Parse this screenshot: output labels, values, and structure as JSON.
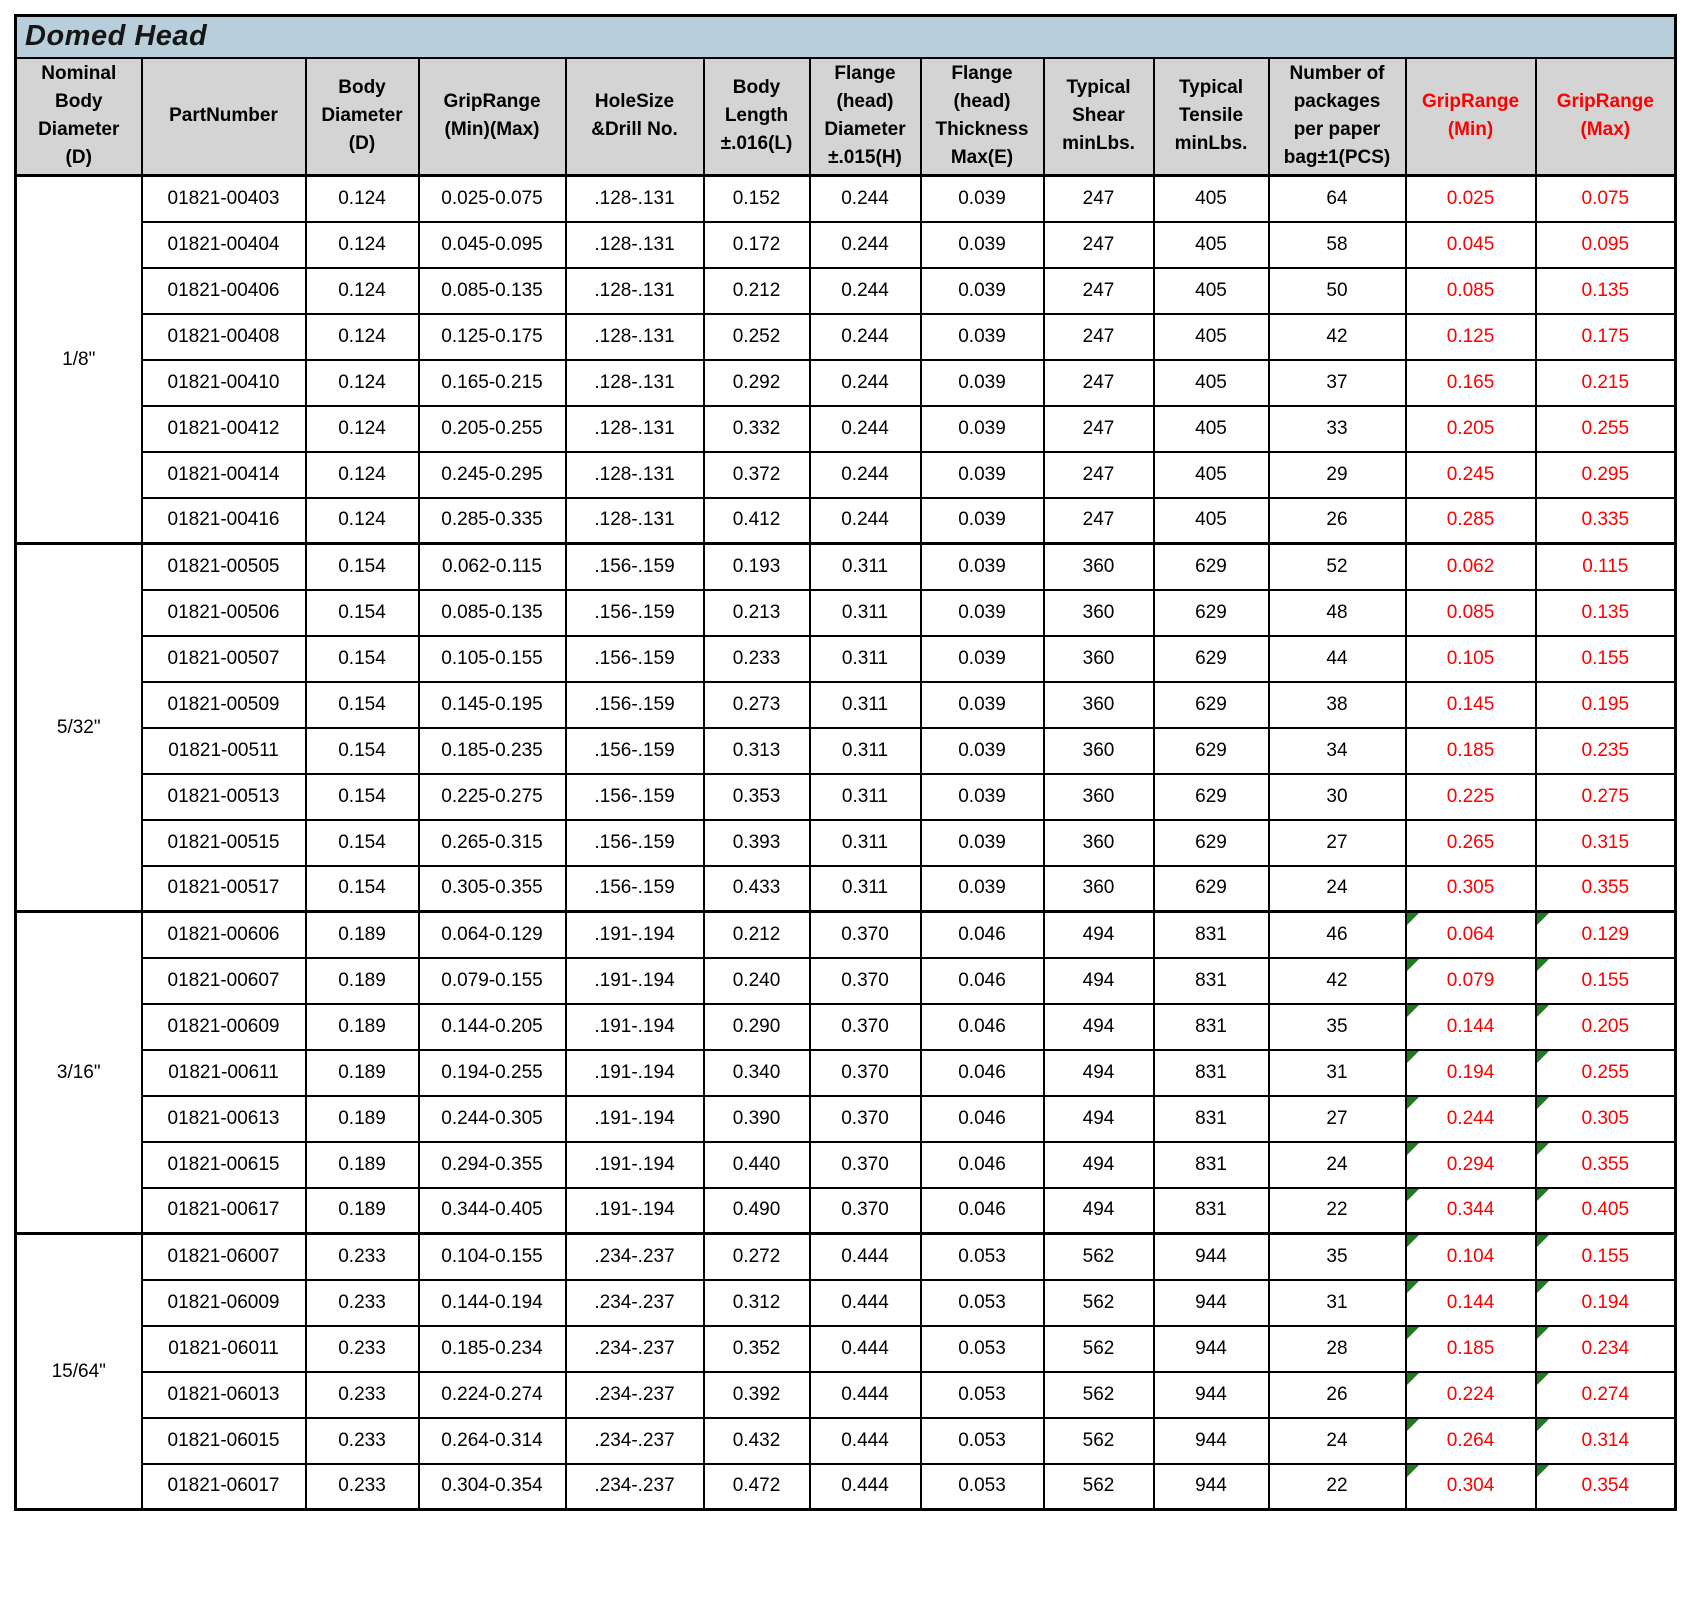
{
  "title": "Domed Head",
  "colors": {
    "title_bg": "#B8CEDA",
    "header_bg": "#D4D4D4",
    "accent_red": "#FF0000",
    "flag_green": "#1F7A1F"
  },
  "columns": [
    {
      "label": "Nominal\nBody\nDiameter\n(D)",
      "red": false
    },
    {
      "label": "PartNumber",
      "red": false
    },
    {
      "label": "Body\nDiameter\n(D)",
      "red": false
    },
    {
      "label": "GripRange\n(Min)(Max)",
      "red": false
    },
    {
      "label": "HoleSize\n&Drill No.",
      "red": false
    },
    {
      "label": "Body\nLength\n±.016(L)",
      "red": false
    },
    {
      "label": "Flange\n(head)\nDiameter\n±.015(H)",
      "red": false
    },
    {
      "label": "Flange\n(head)\nThickness\nMax(E)",
      "red": false
    },
    {
      "label": "Typical\nShear\nminLbs.",
      "red": false
    },
    {
      "label": "Typical\nTensile\nminLbs.",
      "red": false
    },
    {
      "label": "Number of\npackages\nper paper\nbag±1(PCS)",
      "red": false
    },
    {
      "label": "GripRange\n(Min)",
      "red": true
    },
    {
      "label": "GripRange\n(Max)",
      "red": true
    }
  ],
  "groups": [
    {
      "diameter": "1/8\"",
      "error_flags": false,
      "rows": [
        [
          "01821-00403",
          "0.124",
          "0.025-0.075",
          ".128-.131",
          "0.152",
          "0.244",
          "0.039",
          "247",
          "405",
          "64",
          "0.025",
          "0.075"
        ],
        [
          "01821-00404",
          "0.124",
          "0.045-0.095",
          ".128-.131",
          "0.172",
          "0.244",
          "0.039",
          "247",
          "405",
          "58",
          "0.045",
          "0.095"
        ],
        [
          "01821-00406",
          "0.124",
          "0.085-0.135",
          ".128-.131",
          "0.212",
          "0.244",
          "0.039",
          "247",
          "405",
          "50",
          "0.085",
          "0.135"
        ],
        [
          "01821-00408",
          "0.124",
          "0.125-0.175",
          ".128-.131",
          "0.252",
          "0.244",
          "0.039",
          "247",
          "405",
          "42",
          "0.125",
          "0.175"
        ],
        [
          "01821-00410",
          "0.124",
          "0.165-0.215",
          ".128-.131",
          "0.292",
          "0.244",
          "0.039",
          "247",
          "405",
          "37",
          "0.165",
          "0.215"
        ],
        [
          "01821-00412",
          "0.124",
          "0.205-0.255",
          ".128-.131",
          "0.332",
          "0.244",
          "0.039",
          "247",
          "405",
          "33",
          "0.205",
          "0.255"
        ],
        [
          "01821-00414",
          "0.124",
          "0.245-0.295",
          ".128-.131",
          "0.372",
          "0.244",
          "0.039",
          "247",
          "405",
          "29",
          "0.245",
          "0.295"
        ],
        [
          "01821-00416",
          "0.124",
          "0.285-0.335",
          ".128-.131",
          "0.412",
          "0.244",
          "0.039",
          "247",
          "405",
          "26",
          "0.285",
          "0.335"
        ]
      ]
    },
    {
      "diameter": "5/32\"",
      "error_flags": false,
      "rows": [
        [
          "01821-00505",
          "0.154",
          "0.062-0.115",
          ".156-.159",
          "0.193",
          "0.311",
          "0.039",
          "360",
          "629",
          "52",
          "0.062",
          "0.115"
        ],
        [
          "01821-00506",
          "0.154",
          "0.085-0.135",
          ".156-.159",
          "0.213",
          "0.311",
          "0.039",
          "360",
          "629",
          "48",
          "0.085",
          "0.135"
        ],
        [
          "01821-00507",
          "0.154",
          "0.105-0.155",
          ".156-.159",
          "0.233",
          "0.311",
          "0.039",
          "360",
          "629",
          "44",
          "0.105",
          "0.155"
        ],
        [
          "01821-00509",
          "0.154",
          "0.145-0.195",
          ".156-.159",
          "0.273",
          "0.311",
          "0.039",
          "360",
          "629",
          "38",
          "0.145",
          "0.195"
        ],
        [
          "01821-00511",
          "0.154",
          "0.185-0.235",
          ".156-.159",
          "0.313",
          "0.311",
          "0.039",
          "360",
          "629",
          "34",
          "0.185",
          "0.235"
        ],
        [
          "01821-00513",
          "0.154",
          "0.225-0.275",
          ".156-.159",
          "0.353",
          "0.311",
          "0.039",
          "360",
          "629",
          "30",
          "0.225",
          "0.275"
        ],
        [
          "01821-00515",
          "0.154",
          "0.265-0.315",
          ".156-.159",
          "0.393",
          "0.311",
          "0.039",
          "360",
          "629",
          "27",
          "0.265",
          "0.315"
        ],
        [
          "01821-00517",
          "0.154",
          "0.305-0.355",
          ".156-.159",
          "0.433",
          "0.311",
          "0.039",
          "360",
          "629",
          "24",
          "0.305",
          "0.355"
        ]
      ]
    },
    {
      "diameter": "3/16\"",
      "error_flags": true,
      "rows": [
        [
          "01821-00606",
          "0.189",
          "0.064-0.129",
          ".191-.194",
          "0.212",
          "0.370",
          "0.046",
          "494",
          "831",
          "46",
          "0.064",
          "0.129"
        ],
        [
          "01821-00607",
          "0.189",
          "0.079-0.155",
          ".191-.194",
          "0.240",
          "0.370",
          "0.046",
          "494",
          "831",
          "42",
          "0.079",
          "0.155"
        ],
        [
          "01821-00609",
          "0.189",
          "0.144-0.205",
          ".191-.194",
          "0.290",
          "0.370",
          "0.046",
          "494",
          "831",
          "35",
          "0.144",
          "0.205"
        ],
        [
          "01821-00611",
          "0.189",
          "0.194-0.255",
          ".191-.194",
          "0.340",
          "0.370",
          "0.046",
          "494",
          "831",
          "31",
          "0.194",
          "0.255"
        ],
        [
          "01821-00613",
          "0.189",
          "0.244-0.305",
          ".191-.194",
          "0.390",
          "0.370",
          "0.046",
          "494",
          "831",
          "27",
          "0.244",
          "0.305"
        ],
        [
          "01821-00615",
          "0.189",
          "0.294-0.355",
          ".191-.194",
          "0.440",
          "0.370",
          "0.046",
          "494",
          "831",
          "24",
          "0.294",
          "0.355"
        ],
        [
          "01821-00617",
          "0.189",
          "0.344-0.405",
          ".191-.194",
          "0.490",
          "0.370",
          "0.046",
          "494",
          "831",
          "22",
          "0.344",
          "0.405"
        ]
      ]
    },
    {
      "diameter": "15/64\"",
      "error_flags": true,
      "rows": [
        [
          "01821-06007",
          "0.233",
          "0.104-0.155",
          ".234-.237",
          "0.272",
          "0.444",
          "0.053",
          "562",
          "944",
          "35",
          "0.104",
          "0.155"
        ],
        [
          "01821-06009",
          "0.233",
          "0.144-0.194",
          ".234-.237",
          "0.312",
          "0.444",
          "0.053",
          "562",
          "944",
          "31",
          "0.144",
          "0.194"
        ],
        [
          "01821-06011",
          "0.233",
          "0.185-0.234",
          ".234-.237",
          "0.352",
          "0.444",
          "0.053",
          "562",
          "944",
          "28",
          "0.185",
          "0.234"
        ],
        [
          "01821-06013",
          "0.233",
          "0.224-0.274",
          ".234-.237",
          "0.392",
          "0.444",
          "0.053",
          "562",
          "944",
          "26",
          "0.224",
          "0.274"
        ],
        [
          "01821-06015",
          "0.233",
          "0.264-0.314",
          ".234-.237",
          "0.432",
          "0.444",
          "0.053",
          "562",
          "944",
          "24",
          "0.264",
          "0.314"
        ],
        [
          "01821-06017",
          "0.233",
          "0.304-0.354",
          ".234-.237",
          "0.472",
          "0.444",
          "0.053",
          "562",
          "944",
          "22",
          "0.304",
          "0.354"
        ]
      ]
    }
  ]
}
